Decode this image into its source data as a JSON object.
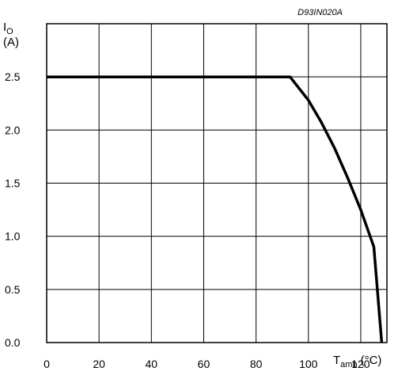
{
  "ref_code": "D93IN020A",
  "chart_data": {
    "type": "line",
    "ylabel": {
      "main": "I",
      "sub": "O",
      "unit": "(A)"
    },
    "xlabel": {
      "main": "T",
      "sub": "amb",
      "unit": "(°C)"
    },
    "xlim": [
      0,
      130
    ],
    "ylim": [
      0,
      3.0
    ],
    "x_ticks": [
      0,
      20,
      40,
      60,
      80,
      100,
      120
    ],
    "x_tick_labels": [
      "0",
      "20",
      "40",
      "60",
      "80",
      "100",
      "120"
    ],
    "y_ticks": [
      0,
      0.5,
      1.0,
      1.5,
      2.0,
      2.5
    ],
    "y_tick_labels": [
      "0.0",
      "0.5",
      "1.0",
      "1.5",
      "2.0",
      "2.5"
    ],
    "grid": true,
    "series": [
      {
        "color": "#000000",
        "x": [
          0,
          93,
          100,
          105,
          110,
          115,
          120,
          125,
          128
        ],
        "y": [
          2.5,
          2.5,
          2.28,
          2.07,
          1.83,
          1.55,
          1.25,
          0.9,
          0.0
        ]
      }
    ]
  }
}
